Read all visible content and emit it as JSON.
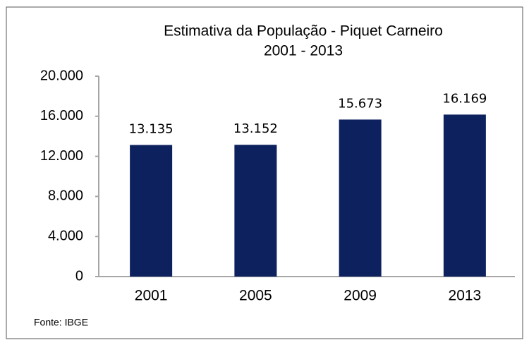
{
  "chart_data": {
    "type": "bar",
    "title": "Estimativa da População - Piquet Carneiro",
    "subtitle": "2001 - 2013",
    "categories": [
      "2001",
      "2005",
      "2009",
      "2013"
    ],
    "values": [
      13135,
      13152,
      15673,
      16169
    ],
    "value_labels": [
      "13.135",
      "13.152",
      "15.673",
      "16.169"
    ],
    "color": "#0c215e",
    "ylim": [
      0,
      20000
    ],
    "yticks": [
      {
        "value": 0,
        "label": "0"
      },
      {
        "value": 4000,
        "label": "4.000"
      },
      {
        "value": 8000,
        "label": "8.000"
      },
      {
        "value": 12000,
        "label": "12.000"
      },
      {
        "value": 16000,
        "label": "16.000"
      },
      {
        "value": 20000,
        "label": "20.000"
      }
    ],
    "grid": false,
    "source": "Fonte: IBGE"
  }
}
